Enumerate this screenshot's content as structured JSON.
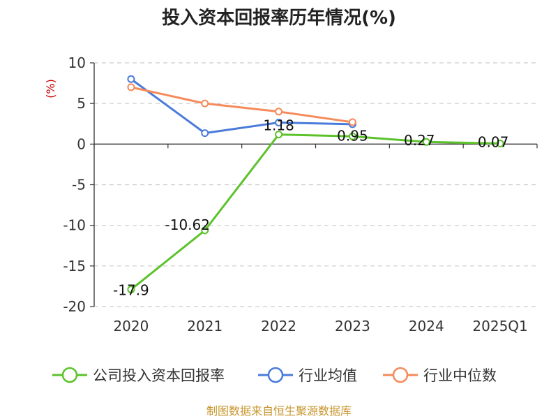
{
  "chart_data": {
    "type": "line",
    "title": "投入资本回报率历年情况(%)",
    "ylabel": "(%)",
    "xlabel": "",
    "categories": [
      "2020",
      "2021",
      "2022",
      "2023",
      "2024",
      "2025Q1"
    ],
    "ylim": [
      -20,
      10
    ],
    "yticks": [
      10,
      5,
      0,
      -5,
      -10,
      -15,
      -20
    ],
    "grid": true,
    "legend_position": "bottom",
    "series": [
      {
        "name": "公司投入资本回报率",
        "color": "#5cc22b",
        "values": [
          -17.9,
          -10.62,
          1.18,
          0.95,
          0.27,
          0.07
        ],
        "labels": [
          "-17.9",
          "-10.62",
          "1.18",
          "0.95",
          "0.27",
          "0.07"
        ]
      },
      {
        "name": "行业均值",
        "color": "#4a7bdb",
        "values": [
          8.0,
          1.35,
          2.65,
          2.45,
          null,
          null
        ]
      },
      {
        "name": "行业中位数",
        "color": "#f58a5b",
        "values": [
          7.0,
          5.0,
          4.0,
          2.7,
          null,
          null
        ]
      }
    ],
    "source": "制图数据来自恒生聚源数据库",
    "source_color": "#c8962e",
    "ylabel_color": "#cc0000"
  }
}
